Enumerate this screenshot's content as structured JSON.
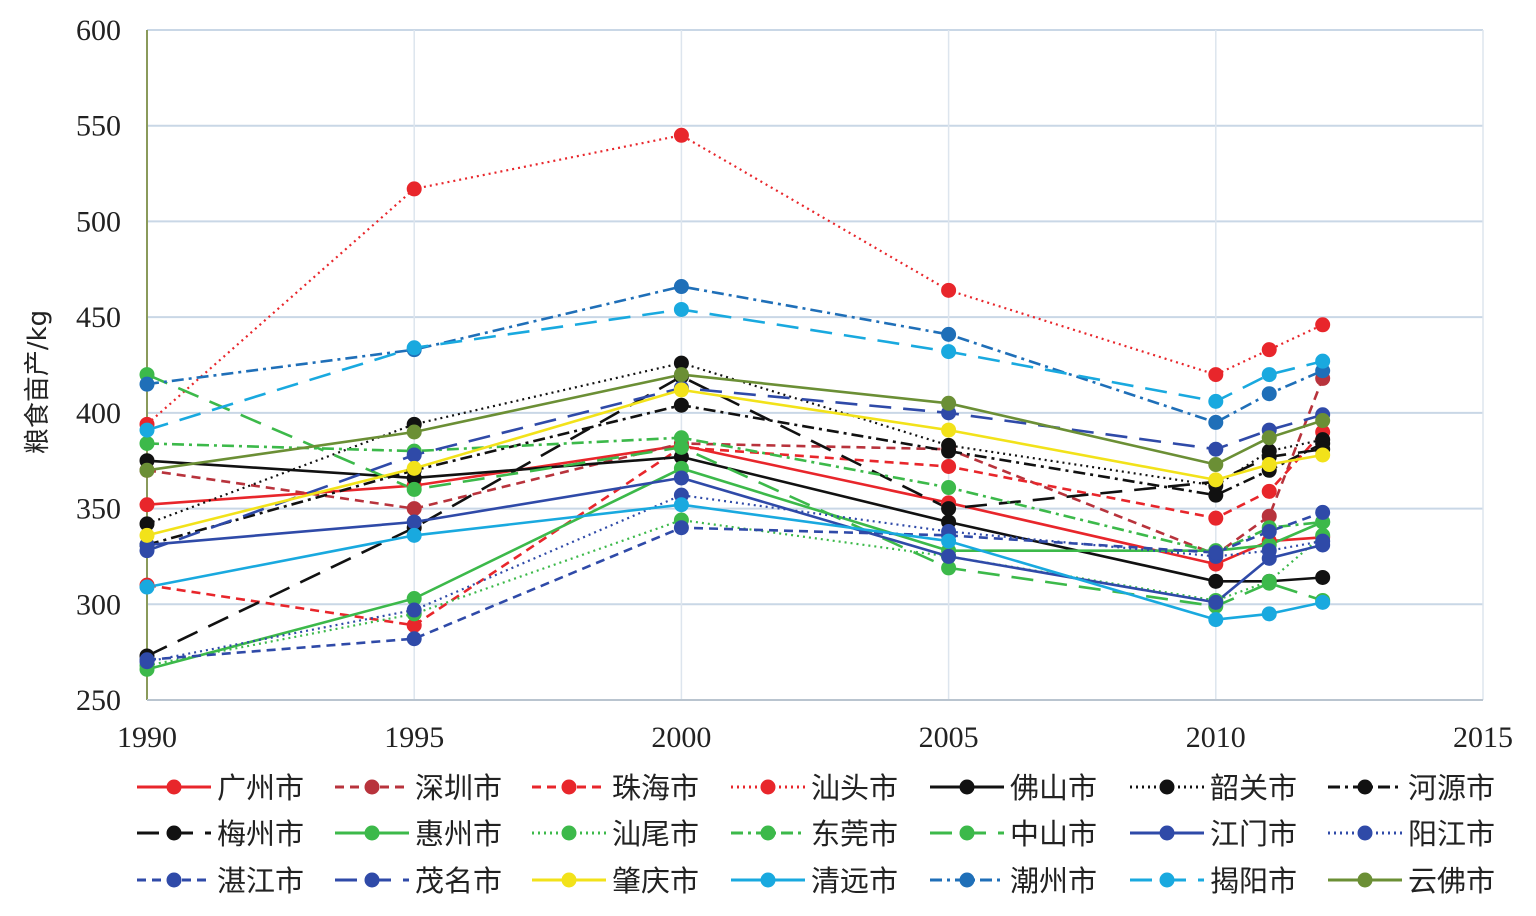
{
  "chart_data": {
    "type": "line",
    "title": "",
    "xlabel": "",
    "ylabel": "粮食亩产/kg",
    "xlim": [
      1990,
      2015
    ],
    "ylim": [
      250,
      600
    ],
    "x_ticks": [
      1990,
      1995,
      2000,
      2005,
      2010,
      2015
    ],
    "y_ticks": [
      250,
      300,
      350,
      400,
      450,
      500,
      550,
      600
    ],
    "grid": true,
    "legend_position": "bottom",
    "x": [
      1990,
      1995,
      2000,
      2005,
      2010,
      2011,
      2012
    ],
    "series": [
      {
        "name": "广州市",
        "color": "#e8262b",
        "dash": "solid",
        "values": [
          352,
          362,
          383,
          353,
          321,
          333,
          335
        ]
      },
      {
        "name": "深圳市",
        "color": "#b8333c",
        "dash": "dash",
        "values": [
          370,
          350,
          384,
          381,
          326,
          346,
          418
        ]
      },
      {
        "name": "珠海市",
        "color": "#e8262b",
        "dash": "dash",
        "values": [
          310,
          289,
          382,
          372,
          345,
          359,
          390
        ]
      },
      {
        "name": "汕头市",
        "color": "#e8262b",
        "dash": "dot",
        "values": [
          394,
          517,
          545,
          464,
          420,
          433,
          446
        ]
      },
      {
        "name": "佛山市",
        "color": "#111111",
        "dash": "solid",
        "values": [
          375,
          366,
          377,
          343,
          312,
          312,
          314
        ]
      },
      {
        "name": "韶关市",
        "color": "#111111",
        "dash": "dot",
        "values": [
          342,
          394,
          426,
          383,
          362,
          380,
          386
        ]
      },
      {
        "name": "河源市",
        "color": "#111111",
        "dash": "dashdot",
        "values": [
          331,
          370,
          404,
          380,
          357,
          370,
          384
        ]
      },
      {
        "name": "梅州市",
        "color": "#111111",
        "dash": "longdash",
        "values": [
          273,
          340,
          419,
          350,
          364,
          377,
          381
        ]
      },
      {
        "name": "惠州市",
        "color": "#3cb94a",
        "dash": "solid",
        "values": [
          266,
          303,
          371,
          328,
          328,
          331,
          343
        ]
      },
      {
        "name": "汕尾市",
        "color": "#3cb94a",
        "dash": "dot",
        "values": [
          268,
          295,
          344,
          325,
          302,
          312,
          336
        ]
      },
      {
        "name": "东莞市",
        "color": "#3cb94a",
        "dash": "dashdot",
        "values": [
          384,
          380,
          387,
          361,
          327,
          340,
          343
        ]
      },
      {
        "name": "中山市",
        "color": "#3cb94a",
        "dash": "longdash",
        "values": [
          420,
          360,
          382,
          319,
          299,
          311,
          302
        ]
      },
      {
        "name": "江门市",
        "color": "#2f4aa8",
        "dash": "solid",
        "values": [
          331,
          343,
          366,
          325,
          301,
          324,
          331
        ]
      },
      {
        "name": "阳江市",
        "color": "#2f4aa8",
        "dash": "dot",
        "values": [
          270,
          297,
          357,
          338,
          325,
          328,
          333
        ]
      },
      {
        "name": "湛江市",
        "color": "#2f4aa8",
        "dash": "dash",
        "values": [
          271,
          282,
          340,
          336,
          327,
          338,
          348
        ]
      },
      {
        "name": "茂名市",
        "color": "#2f4aa8",
        "dash": "longdash",
        "values": [
          328,
          378,
          413,
          400,
          381,
          391,
          399
        ]
      },
      {
        "name": "肇庆市",
        "color": "#f2e21a",
        "dash": "solid",
        "values": [
          336,
          371,
          412,
          391,
          365,
          373,
          378
        ]
      },
      {
        "name": "清远市",
        "color": "#19a9df",
        "dash": "solid",
        "values": [
          309,
          336,
          352,
          333,
          292,
          295,
          301
        ]
      },
      {
        "name": "潮州市",
        "color": "#1f6fb8",
        "dash": "dashdot",
        "values": [
          415,
          433,
          466,
          441,
          395,
          410,
          422
        ]
      },
      {
        "name": "揭阳市",
        "color": "#19a9df",
        "dash": "longdash",
        "values": [
          391,
          434,
          454,
          432,
          406,
          420,
          427
        ]
      },
      {
        "name": "云佛市",
        "color": "#6b8f35",
        "dash": "solid",
        "values": [
          370,
          390,
          420,
          405,
          373,
          387,
          396
        ]
      }
    ]
  }
}
